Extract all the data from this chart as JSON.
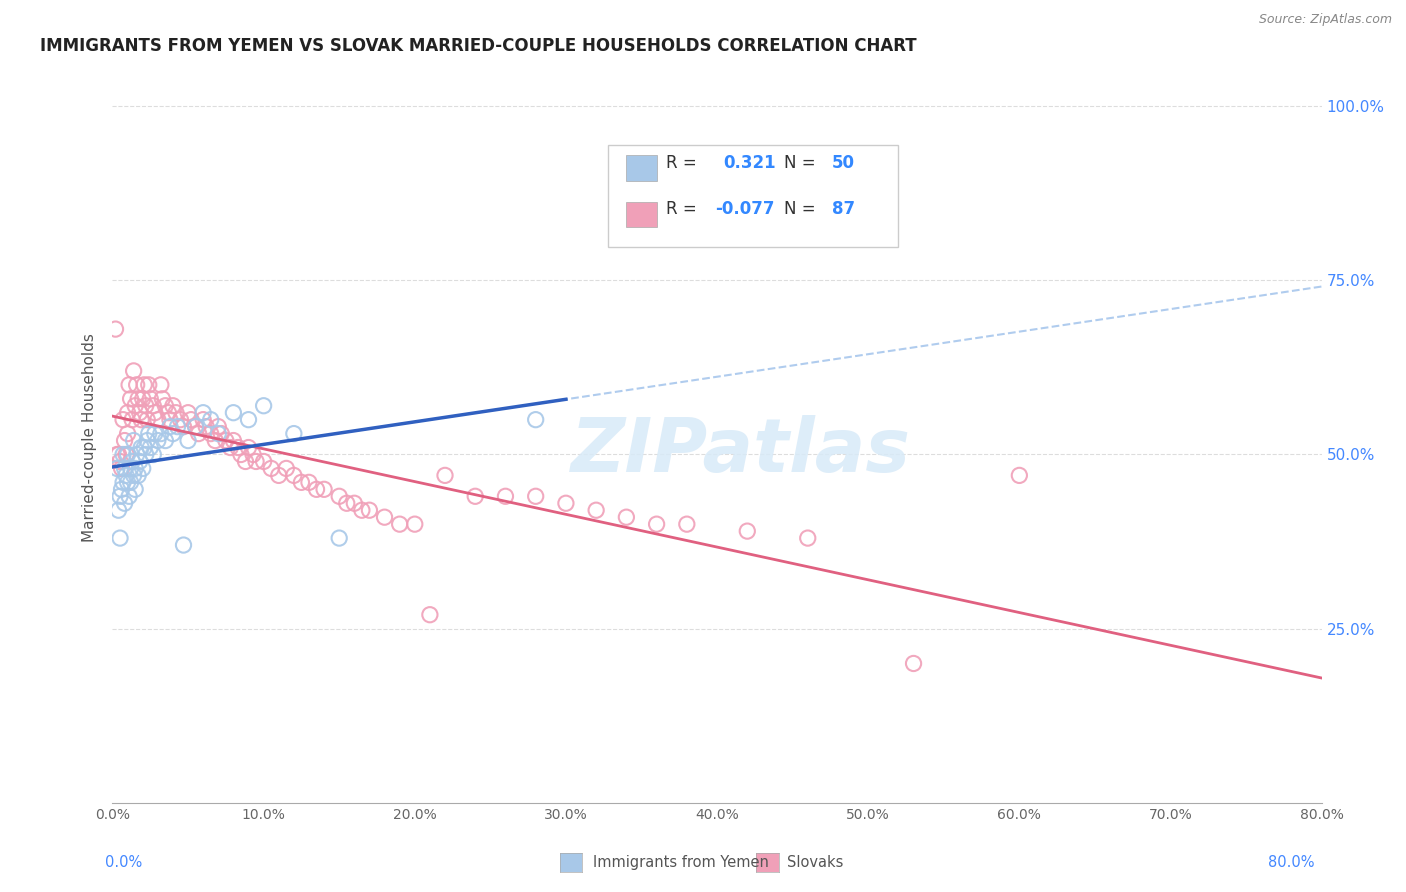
{
  "title": "IMMIGRANTS FROM YEMEN VS SLOVAK MARRIED-COUPLE HOUSEHOLDS CORRELATION CHART",
  "source": "Source: ZipAtlas.com",
  "ylabel": "Married-couple Households",
  "blue_color": "#a8c8e8",
  "pink_color": "#f0a0b8",
  "blue_line_color": "#3060c0",
  "pink_line_color": "#e06080",
  "dashed_line_color": "#b0ccee",
  "grid_color": "#dddddd",
  "right_tick_color": "#4488ff",
  "yemen_x": [
    0.003,
    0.004,
    0.005,
    0.005,
    0.006,
    0.007,
    0.007,
    0.008,
    0.008,
    0.009,
    0.01,
    0.01,
    0.011,
    0.012,
    0.012,
    0.013,
    0.014,
    0.014,
    0.015,
    0.015,
    0.016,
    0.017,
    0.018,
    0.019,
    0.02,
    0.021,
    0.022,
    0.023,
    0.024,
    0.025,
    0.027,
    0.028,
    0.03,
    0.032,
    0.035,
    0.038,
    0.04,
    0.043,
    0.047,
    0.05,
    0.055,
    0.06,
    0.065,
    0.07,
    0.08,
    0.09,
    0.1,
    0.12,
    0.15,
    0.28
  ],
  "yemen_y": [
    0.48,
    0.42,
    0.38,
    0.44,
    0.45,
    0.46,
    0.5,
    0.43,
    0.48,
    0.47,
    0.46,
    0.5,
    0.44,
    0.48,
    0.46,
    0.49,
    0.47,
    0.52,
    0.48,
    0.45,
    0.5,
    0.47,
    0.49,
    0.51,
    0.48,
    0.51,
    0.5,
    0.52,
    0.53,
    0.51,
    0.5,
    0.53,
    0.52,
    0.53,
    0.52,
    0.54,
    0.53,
    0.54,
    0.37,
    0.52,
    0.54,
    0.56,
    0.55,
    0.53,
    0.56,
    0.55,
    0.57,
    0.53,
    0.38,
    0.55
  ],
  "slovak_x": [
    0.002,
    0.003,
    0.004,
    0.005,
    0.006,
    0.007,
    0.008,
    0.009,
    0.01,
    0.01,
    0.011,
    0.012,
    0.013,
    0.014,
    0.015,
    0.016,
    0.017,
    0.018,
    0.019,
    0.02,
    0.021,
    0.022,
    0.023,
    0.024,
    0.025,
    0.027,
    0.028,
    0.03,
    0.032,
    0.033,
    0.035,
    0.037,
    0.038,
    0.04,
    0.042,
    0.045,
    0.047,
    0.05,
    0.052,
    0.055,
    0.057,
    0.06,
    0.062,
    0.065,
    0.068,
    0.07,
    0.072,
    0.075,
    0.078,
    0.08,
    0.083,
    0.085,
    0.088,
    0.09,
    0.093,
    0.095,
    0.1,
    0.105,
    0.11,
    0.115,
    0.12,
    0.125,
    0.13,
    0.135,
    0.14,
    0.15,
    0.155,
    0.16,
    0.165,
    0.17,
    0.18,
    0.19,
    0.2,
    0.21,
    0.22,
    0.24,
    0.26,
    0.28,
    0.3,
    0.32,
    0.34,
    0.36,
    0.38,
    0.42,
    0.46,
    0.53,
    0.6
  ],
  "slovak_y": [
    0.68,
    0.5,
    0.5,
    0.49,
    0.48,
    0.55,
    0.52,
    0.5,
    0.53,
    0.56,
    0.6,
    0.58,
    0.55,
    0.62,
    0.57,
    0.6,
    0.58,
    0.56,
    0.55,
    0.58,
    0.6,
    0.57,
    0.55,
    0.6,
    0.58,
    0.57,
    0.56,
    0.55,
    0.6,
    0.58,
    0.57,
    0.56,
    0.55,
    0.57,
    0.56,
    0.55,
    0.54,
    0.56,
    0.55,
    0.54,
    0.53,
    0.55,
    0.54,
    0.53,
    0.52,
    0.54,
    0.53,
    0.52,
    0.51,
    0.52,
    0.51,
    0.5,
    0.49,
    0.51,
    0.5,
    0.49,
    0.49,
    0.48,
    0.47,
    0.48,
    0.47,
    0.46,
    0.46,
    0.45,
    0.45,
    0.44,
    0.43,
    0.43,
    0.42,
    0.42,
    0.41,
    0.4,
    0.4,
    0.27,
    0.47,
    0.44,
    0.44,
    0.44,
    0.43,
    0.42,
    0.41,
    0.4,
    0.4,
    0.39,
    0.38,
    0.2,
    0.47
  ],
  "xlim": [
    0.0,
    0.8
  ],
  "ylim": [
    0.0,
    1.05
  ],
  "yticks": [
    0.25,
    0.5,
    0.75,
    1.0
  ],
  "xtick_labels": [
    "0.0%",
    "10.0%",
    "20.0%",
    "30.0%",
    "40.0%",
    "50.0%",
    "60.0%",
    "70.0%",
    "80.0%"
  ],
  "xtick_values": [
    0.0,
    0.1,
    0.2,
    0.3,
    0.4,
    0.5,
    0.6,
    0.7,
    0.8
  ]
}
